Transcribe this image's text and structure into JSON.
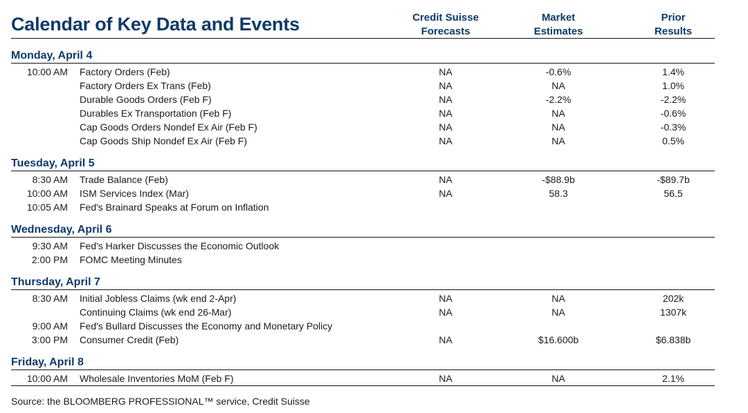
{
  "title": "Calendar of Key Data and Events",
  "columns": {
    "cs": "Credit Suisse\nForecasts",
    "cs1": "Credit Suisse",
    "cs2": "Forecasts",
    "me1": "Market",
    "me2": "Estimates",
    "pr1": "Prior",
    "pr2": "Results"
  },
  "days": [
    {
      "label": "Monday, April 4",
      "rows": [
        {
          "time": "10:00 AM",
          "event": "Factory Orders (Feb)",
          "cs": "NA",
          "me": "-0.6%",
          "pr": "1.4%"
        },
        {
          "time": "",
          "event": "Factory Orders Ex Trans (Feb)",
          "cs": "NA",
          "me": "NA",
          "pr": "1.0%"
        },
        {
          "time": "",
          "event": "Durable Goods Orders (Feb F)",
          "cs": "NA",
          "me": "-2.2%",
          "pr": "-2.2%"
        },
        {
          "time": "",
          "event": "Durables Ex Transportation (Feb F)",
          "cs": "NA",
          "me": "NA",
          "pr": "-0.6%"
        },
        {
          "time": "",
          "event": "Cap Goods Orders Nondef Ex Air (Feb F)",
          "cs": "NA",
          "me": "NA",
          "pr": "-0.3%"
        },
        {
          "time": "",
          "event": "Cap Goods Ship Nondef Ex Air (Feb F)",
          "cs": "NA",
          "me": "NA",
          "pr": "0.5%"
        }
      ]
    },
    {
      "label": "Tuesday, April 5",
      "rows": [
        {
          "time": "8:30 AM",
          "event": "Trade Balance (Feb)",
          "cs": "NA",
          "me": "-$88.9b",
          "pr": "-$89.7b"
        },
        {
          "time": "10:00 AM",
          "event": "ISM Services Index (Mar)",
          "cs": "NA",
          "me": "58.3",
          "pr": "56.5"
        },
        {
          "time": "10:05 AM",
          "event": "Fed's Brainard Speaks at Forum on Inflation",
          "cs": "",
          "me": "",
          "pr": ""
        }
      ]
    },
    {
      "label": "Wednesday, April 6",
      "rows": [
        {
          "time": "9:30 AM",
          "event": "Fed's Harker Discusses the Economic Outlook",
          "cs": "",
          "me": "",
          "pr": ""
        },
        {
          "time": "2:00 PM",
          "event": "FOMC Meeting Minutes",
          "cs": "",
          "me": "",
          "pr": ""
        }
      ]
    },
    {
      "label": "Thursday, April 7",
      "rows": [
        {
          "time": "8:30 AM",
          "event": "Initial Jobless Claims (wk end 2-Apr)",
          "cs": "NA",
          "me": "NA",
          "pr": "202k"
        },
        {
          "time": "",
          "event": "Continuing Claims (wk end 26-Mar)",
          "cs": "NA",
          "me": "NA",
          "pr": "1307k"
        },
        {
          "time": "9:00 AM",
          "event": "Fed's Bullard Discusses the Economy and Monetary Policy",
          "cs": "",
          "me": "",
          "pr": ""
        },
        {
          "time": "3:00 PM",
          "event": "Consumer Credit (Feb)",
          "cs": "NA",
          "me": "$16.600b",
          "pr": "$6.838b"
        }
      ]
    },
    {
      "label": "Friday, April 8",
      "rows": [
        {
          "time": "10:00 AM",
          "event": "Wholesale Inventories MoM (Feb F)",
          "cs": "NA",
          "me": "NA",
          "pr": "2.1%"
        }
      ]
    }
  ],
  "source": "Source: the BLOOMBERG PROFESSIONAL™ service, Credit Suisse"
}
